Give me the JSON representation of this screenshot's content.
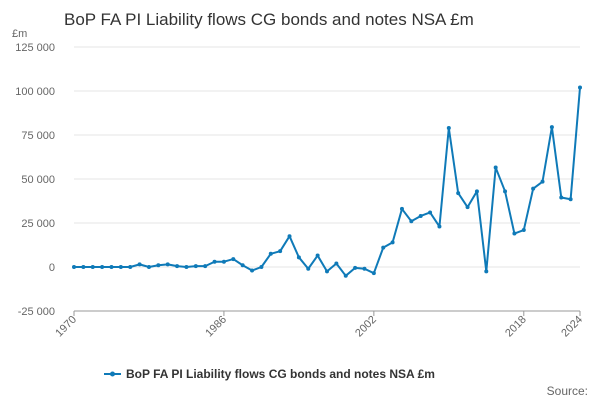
{
  "chart_data": {
    "type": "line",
    "title": "BoP FA PI Liability flows CG bonds and notes NSA £m",
    "ylabel": "£m",
    "xlabel": "",
    "ylim": [
      -25000,
      125000
    ],
    "yticks": [
      -25000,
      0,
      25000,
      50000,
      75000,
      100000,
      125000
    ],
    "ytick_labels": [
      "-25 000",
      "0",
      "25 000",
      "50 000",
      "75 000",
      "100 000",
      "125 000"
    ],
    "xlim": [
      1970,
      2024
    ],
    "xticks": [
      1970,
      1986,
      2002,
      2018,
      2024
    ],
    "xtick_labels": [
      "1970",
      "1986",
      "2002",
      "2018",
      "2024"
    ],
    "grid": "horizontal",
    "legend_position": "bottom",
    "colors": {
      "series": "#0f7ab8",
      "grid": "#e6e6e6",
      "axis": "#999999",
      "text": "#333333",
      "muted": "#666666"
    },
    "series": [
      {
        "name": "BoP FA PI Liability flows CG bonds and notes NSA £m",
        "x": [
          1970,
          1971,
          1972,
          1973,
          1974,
          1975,
          1976,
          1977,
          1978,
          1979,
          1980,
          1981,
          1982,
          1983,
          1984,
          1985,
          1986,
          1987,
          1988,
          1989,
          1990,
          1991,
          1992,
          1993,
          1994,
          1995,
          1996,
          1997,
          1998,
          1999,
          2000,
          2001,
          2002,
          2003,
          2004,
          2005,
          2006,
          2007,
          2008,
          2009,
          2010,
          2011,
          2012,
          2013,
          2014,
          2015,
          2016,
          2017,
          2018,
          2019,
          2020,
          2021,
          2022,
          2023,
          2024
        ],
        "y": [
          0,
          0,
          0,
          0,
          0,
          0,
          0,
          1500,
          0,
          1000,
          1500,
          500,
          0,
          500,
          500,
          3000,
          3000,
          4500,
          1000,
          -2000,
          0,
          7500,
          9000,
          17500,
          5500,
          -1000,
          6500,
          -2500,
          2000,
          -5000,
          -500,
          -1000,
          -3500,
          11000,
          14000,
          33000,
          26000,
          29000,
          31000,
          23000,
          79000,
          42000,
          34000,
          43000,
          -2500,
          56500,
          43000,
          19000,
          21000,
          44500,
          48500,
          79500,
          39500,
          38500,
          102000
        ]
      }
    ]
  },
  "footer": {
    "source_label": "Source:"
  }
}
